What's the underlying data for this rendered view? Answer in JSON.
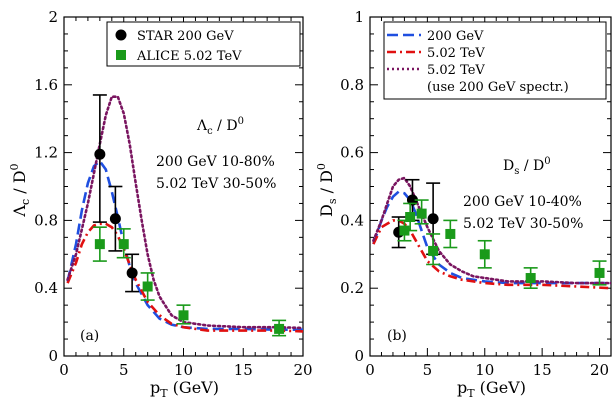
{
  "chart_data": [
    {
      "type": "scatter",
      "panel_label": "(a)",
      "xlabel": "p",
      "xlabel_sub": "T",
      "xlabel_unit": " (GeV)",
      "ylabel": "Λ",
      "ylabel_sub": "c",
      "ylabel_rest": " / D",
      "ylabel_sup": "0",
      "xlim": [
        0,
        20
      ],
      "ylim": [
        0,
        2
      ],
      "xticks": [
        "0",
        "5",
        "10",
        "15",
        "20"
      ],
      "yticks": [
        "0",
        "0.4",
        "0.8",
        "1.2",
        "1.6",
        "2"
      ],
      "ratio_label": {
        "base": "Λ",
        "sub": "c",
        "rest": " / D",
        "sup": "0"
      },
      "annotation": [
        "200 GeV 10-80%",
        "5.02 TeV 30-50%"
      ],
      "legend": [
        {
          "label": "STAR 200 GeV",
          "marker": "circle",
          "color": "#000000"
        },
        {
          "label": "ALICE 5.02 TeV",
          "marker": "square",
          "color": "#1a9a1a"
        }
      ],
      "series": [
        {
          "name": "STAR 200 GeV",
          "kind": "points",
          "marker": "circle",
          "color": "#000000",
          "points": [
            {
              "x": 3.0,
              "y": 1.19,
              "lo": 0.79,
              "hi": 1.54
            },
            {
              "x": 4.3,
              "y": 0.81,
              "lo": 0.62,
              "hi": 1.0
            },
            {
              "x": 5.7,
              "y": 0.49,
              "lo": 0.38,
              "hi": 0.6
            }
          ]
        },
        {
          "name": "ALICE 5.02 TeV",
          "kind": "points",
          "marker": "square",
          "color": "#1a9a1a",
          "points": [
            {
              "x": 3.0,
              "y": 0.66,
              "lo": 0.56,
              "hi": 0.76
            },
            {
              "x": 5.0,
              "y": 0.66,
              "lo": 0.58,
              "hi": 0.75
            },
            {
              "x": 7.0,
              "y": 0.41,
              "lo": 0.33,
              "hi": 0.49
            },
            {
              "x": 10.0,
              "y": 0.24,
              "lo": 0.19,
              "hi": 0.3
            },
            {
              "x": 18.0,
              "y": 0.16,
              "lo": 0.12,
              "hi": 0.21
            }
          ]
        },
        {
          "kind": "line",
          "style": "dashed",
          "color": "#1f4fe0",
          "x": [
            0.3,
            1,
            1.5,
            2,
            2.5,
            3,
            3.5,
            4,
            4.5,
            5,
            5.5,
            6,
            7,
            8,
            9,
            10,
            12,
            15,
            18,
            20
          ],
          "y": [
            0.44,
            0.66,
            0.86,
            1.02,
            1.12,
            1.15,
            1.1,
            0.97,
            0.82,
            0.66,
            0.53,
            0.43,
            0.3,
            0.22,
            0.185,
            0.17,
            0.16,
            0.16,
            0.155,
            0.155
          ]
        },
        {
          "kind": "line",
          "style": "dashdot",
          "color": "#e01010",
          "x": [
            0.3,
            1,
            1.5,
            2,
            2.5,
            3,
            3.5,
            4,
            4.5,
            5,
            5.5,
            6,
            7,
            8,
            9,
            10,
            12,
            15,
            18,
            20
          ],
          "y": [
            0.43,
            0.55,
            0.66,
            0.73,
            0.77,
            0.78,
            0.78,
            0.76,
            0.71,
            0.63,
            0.54,
            0.45,
            0.32,
            0.24,
            0.19,
            0.17,
            0.15,
            0.15,
            0.15,
            0.145
          ]
        },
        {
          "kind": "line",
          "style": "dotted",
          "color": "#7a1560",
          "x": [
            0.3,
            1,
            2,
            3,
            3.5,
            4,
            4.5,
            5,
            5.5,
            6,
            6.5,
            7,
            7.5,
            8,
            9,
            10,
            12,
            15,
            18,
            20
          ],
          "y": [
            0.45,
            0.6,
            0.9,
            1.25,
            1.42,
            1.53,
            1.53,
            1.43,
            1.25,
            1.02,
            0.8,
            0.6,
            0.45,
            0.35,
            0.24,
            0.2,
            0.18,
            0.17,
            0.17,
            0.165
          ]
        }
      ]
    },
    {
      "type": "scatter",
      "panel_label": "(b)",
      "xlabel": "p",
      "xlabel_sub": "T",
      "xlabel_unit": " (GeV)",
      "ylabel": "D",
      "ylabel_sub": "s",
      "ylabel_rest": " / D",
      "ylabel_sup": "0",
      "xlim": [
        0,
        21
      ],
      "ylim": [
        0,
        1
      ],
      "xticks": [
        "0",
        "5",
        "10",
        "15",
        "20"
      ],
      "yticks": [
        "0",
        "0.2",
        "0.4",
        "0.6",
        "0.8",
        "1"
      ],
      "ratio_label": {
        "base": "D",
        "sub": "s",
        "rest": " / D",
        "sup": "0"
      },
      "annotation": [
        "200 GeV 10-40%",
        "5.02 TeV 30-50%"
      ],
      "legend": [
        {
          "label": "200 GeV",
          "style": "dashed",
          "color": "#1f4fe0"
        },
        {
          "label": "5.02 TeV",
          "style": "dashdot",
          "color": "#e01010"
        },
        {
          "label": "5.02 TeV",
          "style": "dotted",
          "color": "#7a1560"
        },
        {
          "label": "(use 200 GeV spectr.)",
          "style": "none",
          "color": "#000000"
        }
      ],
      "series": [
        {
          "kind": "points",
          "marker": "circle",
          "color": "#000000",
          "points": [
            {
              "x": 2.5,
              "y": 0.365,
              "lo": 0.32,
              "hi": 0.41
            },
            {
              "x": 3.7,
              "y": 0.46,
              "lo": 0.4,
              "hi": 0.52
            },
            {
              "x": 5.5,
              "y": 0.405,
              "lo": 0.3,
              "hi": 0.51
            }
          ]
        },
        {
          "kind": "points",
          "marker": "square",
          "color": "#1a9a1a",
          "points": [
            {
              "x": 3.0,
              "y": 0.37,
              "lo": 0.34,
              "hi": 0.4
            },
            {
              "x": 3.5,
              "y": 0.41,
              "lo": 0.37,
              "hi": 0.45
            },
            {
              "x": 4.5,
              "y": 0.42,
              "lo": 0.39,
              "hi": 0.46
            },
            {
              "x": 5.5,
              "y": 0.31,
              "lo": 0.27,
              "hi": 0.36
            },
            {
              "x": 7.0,
              "y": 0.36,
              "lo": 0.32,
              "hi": 0.4
            },
            {
              "x": 10.0,
              "y": 0.3,
              "lo": 0.26,
              "hi": 0.34
            },
            {
              "x": 14.0,
              "y": 0.23,
              "lo": 0.2,
              "hi": 0.26
            },
            {
              "x": 20.0,
              "y": 0.245,
              "lo": 0.21,
              "hi": 0.28
            }
          ]
        },
        {
          "kind": "line",
          "style": "dashed",
          "color": "#1f4fe0",
          "x": [
            0.3,
            1,
            1.5,
            2,
            2.5,
            3,
            3.5,
            4,
            4.5,
            5,
            6,
            7,
            8,
            10,
            12,
            15,
            18,
            21
          ],
          "y": [
            0.33,
            0.4,
            0.44,
            0.47,
            0.485,
            0.48,
            0.46,
            0.42,
            0.37,
            0.32,
            0.27,
            0.245,
            0.23,
            0.22,
            0.215,
            0.215,
            0.215,
            0.215
          ]
        },
        {
          "kind": "line",
          "style": "dashdot",
          "color": "#e01010",
          "x": [
            0.3,
            1,
            1.5,
            2,
            2.5,
            3,
            3.5,
            4,
            4.5,
            5,
            6,
            7,
            8,
            10,
            12,
            15,
            18,
            21
          ],
          "y": [
            0.33,
            0.38,
            0.39,
            0.4,
            0.4,
            0.39,
            0.37,
            0.34,
            0.31,
            0.28,
            0.25,
            0.235,
            0.225,
            0.215,
            0.21,
            0.21,
            0.205,
            0.2
          ]
        },
        {
          "kind": "line",
          "style": "dotted",
          "color": "#7a1560",
          "x": [
            0.3,
            1,
            1.5,
            2,
            2.5,
            3,
            3.5,
            4,
            4.5,
            5,
            6,
            7,
            8,
            9,
            10,
            12,
            15,
            18,
            21
          ],
          "y": [
            0.34,
            0.4,
            0.45,
            0.5,
            0.52,
            0.525,
            0.5,
            0.46,
            0.42,
            0.38,
            0.31,
            0.27,
            0.25,
            0.235,
            0.23,
            0.22,
            0.22,
            0.215,
            0.215
          ]
        }
      ]
    }
  ]
}
